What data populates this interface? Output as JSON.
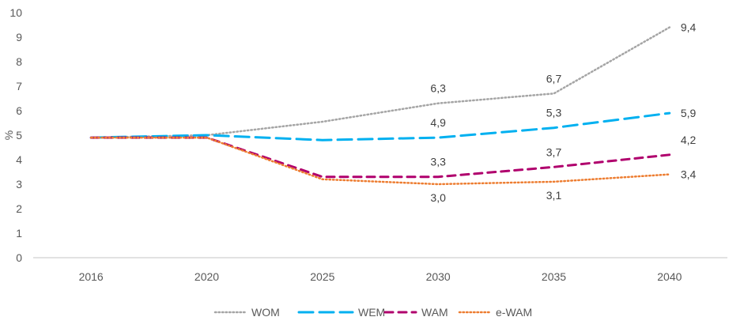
{
  "chart_data": {
    "type": "line",
    "title": "",
    "xlabel": "",
    "ylabel": "%",
    "ylim": [
      0,
      10
    ],
    "yticks": [
      0,
      1,
      2,
      3,
      4,
      5,
      6,
      7,
      8,
      9,
      10
    ],
    "grid": false,
    "legend_position": "bottom",
    "categories": [
      "2016",
      "2020",
      "2025",
      "2030",
      "2035",
      "2040"
    ],
    "series": [
      {
        "name": "WOM",
        "color": "#A5A5A5",
        "style": "dotted",
        "values": [
          4.9,
          5.0,
          5.55,
          6.3,
          6.7,
          9.4
        ],
        "labels": [
          null,
          null,
          null,
          "6,3",
          "6,7",
          "9,4"
        ],
        "label_pos": [
          null,
          null,
          null,
          "above",
          "above",
          "right"
        ]
      },
      {
        "name": "WEM",
        "color": "#00B0F0",
        "style": "long-dash",
        "values": [
          4.9,
          5.0,
          4.8,
          4.9,
          5.3,
          5.9
        ],
        "labels": [
          null,
          null,
          null,
          "4,9",
          "5,3",
          "5,9"
        ],
        "label_pos": [
          null,
          null,
          null,
          "above",
          "above",
          "right"
        ]
      },
      {
        "name": "WAM",
        "color": "#B0006D",
        "style": "dash",
        "values": [
          4.9,
          4.9,
          3.3,
          3.3,
          3.7,
          4.2
        ],
        "labels": [
          null,
          null,
          null,
          "3,3",
          "3,7",
          "4,2"
        ],
        "label_pos": [
          null,
          null,
          null,
          "above",
          "above",
          "right-above"
        ]
      },
      {
        "name": "e-WAM",
        "color": "#ED7D31",
        "style": "dotted",
        "values": [
          4.9,
          4.9,
          3.2,
          3.0,
          3.1,
          3.4
        ],
        "labels": [
          null,
          null,
          null,
          "3,0",
          "3,1",
          "3,4"
        ],
        "label_pos": [
          null,
          null,
          null,
          "below",
          "below",
          "right"
        ]
      }
    ]
  }
}
